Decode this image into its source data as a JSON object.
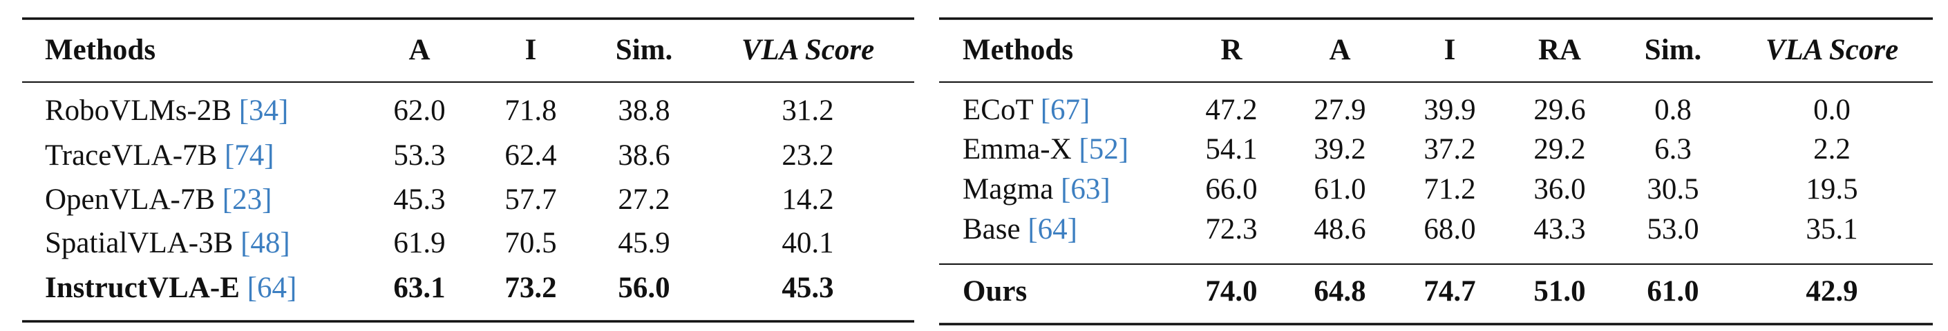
{
  "left_table": {
    "headers": [
      "Methods",
      "A",
      "I",
      "Sim.",
      "VLA Score"
    ],
    "rows": [
      {
        "method": "RoboVLMs-2B",
        "ref": "[34]",
        "values": [
          "62.0",
          "71.8",
          "38.8",
          "31.2"
        ]
      },
      {
        "method": "TraceVLA-7B",
        "ref": "[74]",
        "values": [
          "53.3",
          "62.4",
          "38.6",
          "23.2"
        ]
      },
      {
        "method": "OpenVLA-7B",
        "ref": "[23]",
        "values": [
          "45.3",
          "57.7",
          "27.2",
          "14.2"
        ]
      },
      {
        "method": "SpatialVLA-3B",
        "ref": "[48]",
        "values": [
          "61.9",
          "70.5",
          "45.9",
          "40.1"
        ]
      },
      {
        "method": "InstructVLA-E",
        "ref": "[64]",
        "values": [
          "63.1",
          "73.2",
          "56.0",
          "45.3"
        ],
        "bold": true
      }
    ]
  },
  "right_table": {
    "headers": [
      "Methods",
      "R",
      "A",
      "I",
      "RA",
      "Sim.",
      "VLA Score"
    ],
    "rows": [
      {
        "method": "ECoT",
        "ref": "[67]",
        "values": [
          "47.2",
          "27.9",
          "39.9",
          "29.6",
          "0.8",
          "0.0"
        ]
      },
      {
        "method": "Emma-X",
        "ref": "[52]",
        "values": [
          "54.1",
          "39.2",
          "37.2",
          "29.2",
          "6.3",
          "2.2"
        ]
      },
      {
        "method": "Magma",
        "ref": "[63]",
        "values": [
          "66.0",
          "61.0",
          "71.2",
          "36.0",
          "30.5",
          "19.5"
        ]
      },
      {
        "method": "Base",
        "ref": "[64]",
        "values": [
          "72.3",
          "48.6",
          "68.0",
          "43.3",
          "53.0",
          "35.1"
        ]
      },
      {
        "method": "Ours",
        "values": [
          "74.0",
          "64.8",
          "74.7",
          "51.0",
          "61.0",
          "42.9"
        ],
        "bold": true
      }
    ]
  }
}
